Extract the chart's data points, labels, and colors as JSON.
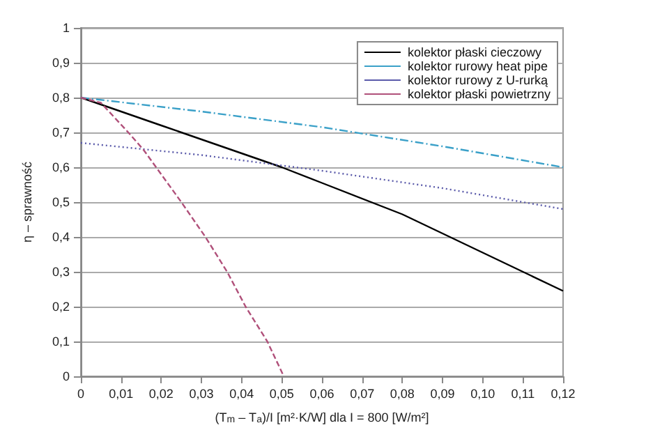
{
  "chart_data": {
    "type": "line",
    "xlabel": "(T$_{m}$ – T$_{a}$)/I [m²·K/W] dla I = 800 [W/m²]",
    "ylabel": "η – sprawność",
    "xlim": [
      0,
      0.12
    ],
    "ylim": [
      0,
      1
    ],
    "xticks": [
      {
        "value": 0,
        "label": "0"
      },
      {
        "value": 0.01,
        "label": "0,01"
      },
      {
        "value": 0.02,
        "label": "0,02"
      },
      {
        "value": 0.03,
        "label": "0,03"
      },
      {
        "value": 0.04,
        "label": "0,04"
      },
      {
        "value": 0.05,
        "label": "0,05"
      },
      {
        "value": 0.06,
        "label": "0,06"
      },
      {
        "value": 0.07,
        "label": "0,07"
      },
      {
        "value": 0.08,
        "label": "0,08"
      },
      {
        "value": 0.09,
        "label": "0,09"
      },
      {
        "value": 0.1,
        "label": "0,10"
      },
      {
        "value": 0.11,
        "label": "0,11"
      },
      {
        "value": 0.12,
        "label": "0,12"
      }
    ],
    "yticks": [
      {
        "value": 0,
        "label": "0"
      },
      {
        "value": 0.1,
        "label": "0,1"
      },
      {
        "value": 0.2,
        "label": "0,2"
      },
      {
        "value": 0.3,
        "label": "0,3"
      },
      {
        "value": 0.4,
        "label": "0,4"
      },
      {
        "value": 0.5,
        "label": "0,5"
      },
      {
        "value": 0.6,
        "label": "0,6"
      },
      {
        "value": 0.7,
        "label": "0,7"
      },
      {
        "value": 0.8,
        "label": "0,8"
      },
      {
        "value": 0.9,
        "label": "0,9"
      },
      {
        "value": 1,
        "label": "1"
      }
    ],
    "grid": "y",
    "legend": "top right",
    "marker": "none",
    "series": [
      {
        "name": "kolektor płaski cieczowy",
        "color": "#000000",
        "line_style": "solid",
        "x": [
          0,
          0.02,
          0.04,
          0.05,
          0.06,
          0.08,
          0.1,
          0.12
        ],
        "values": [
          0.8,
          0.72,
          0.64,
          0.6,
          0.555,
          0.465,
          0.355,
          0.245
        ]
      },
      {
        "name": "kolektor rurowy heat pipe",
        "color": "#3aa0c8",
        "line_style": "dashed",
        "x": [
          0,
          0.03,
          0.06,
          0.09,
          0.12
        ],
        "values": [
          0.8,
          0.76,
          0.715,
          0.66,
          0.6
        ]
      },
      {
        "name": "kolektor rurowy z U-rurką",
        "color": "#5a5aaa",
        "line_style": "dotted",
        "x": [
          0,
          0.03,
          0.06,
          0.09,
          0.12
        ],
        "values": [
          0.67,
          0.635,
          0.59,
          0.54,
          0.48
        ]
      },
      {
        "name": "kolektor płaski powietrzny",
        "color": "#b0507a",
        "line_style": "dashed",
        "x": [
          0,
          0.005,
          0.0118,
          0.0156,
          0.025,
          0.031,
          0.0364,
          0.041,
          0.0464,
          0.0505
        ],
        "values": [
          0.8,
          0.785,
          0.7,
          0.65,
          0.5,
          0.4,
          0.3,
          0.2,
          0.1,
          0
        ]
      }
    ]
  }
}
